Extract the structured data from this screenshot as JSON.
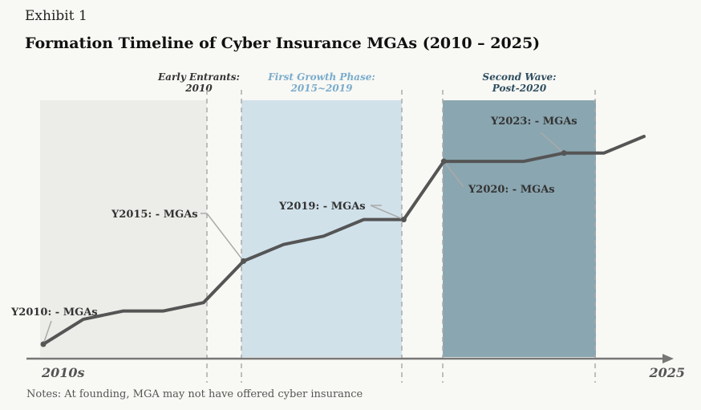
{
  "header": {
    "exhibit": "Exhibit 1",
    "title": "Formation Timeline of Cyber Insurance MGAs (2010 – 2025)"
  },
  "notes": "Notes: At founding, MGA may not have offered cyber insurance",
  "colors": {
    "phase1": "#ececE8",
    "phase2": "#d0e1ea",
    "phase3": "#8aa6b0",
    "line": "#555555",
    "label1": "#333333",
    "label2": "#7aaccc",
    "label3": "#2e4e60"
  },
  "chart_data": {
    "type": "line",
    "x_start_label": "2010s",
    "x_end_label": "2025",
    "xlim": [
      2010,
      2025.5
    ],
    "x": [
      2010,
      2011,
      2012,
      2013,
      2014,
      2015,
      2016,
      2017,
      2018,
      2019,
      2020,
      2021,
      2022,
      2023,
      2024,
      2025
    ],
    "values": [
      0,
      3,
      4,
      4,
      5,
      10,
      12,
      13,
      15,
      15,
      22,
      22,
      22,
      23,
      23,
      25
    ],
    "ylim": [
      0,
      28
    ],
    "phases": [
      {
        "line1": "Early Entrants:",
        "line2": "2010",
        "start": 2010,
        "end": 2014
      },
      {
        "line1": "First Growth Phase:",
        "line2": "2015~2019",
        "start": 2015,
        "end": 2019
      },
      {
        "line1": "Second Wave:",
        "line2": "Post-2020",
        "start": 2020,
        "end": 2023.8
      }
    ],
    "callouts": [
      {
        "text": "Y2010: - MGAs",
        "x": 2010
      },
      {
        "text": "Y2015: - MGAs",
        "x": 2015
      },
      {
        "text": "Y2019: - MGAs",
        "x": 2019
      },
      {
        "text": "Y2020: - MGAs",
        "x": 2020
      },
      {
        "text": "Y2023: - MGAs",
        "x": 2023
      }
    ]
  }
}
